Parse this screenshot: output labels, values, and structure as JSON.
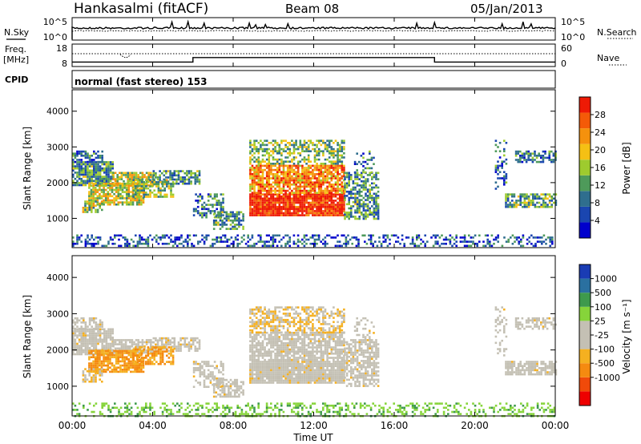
{
  "header": {
    "title": "Hankasalmi (fitACF)",
    "beam": "Beam 08",
    "date": "05/Jan/2013"
  },
  "panels": {
    "nsky": {
      "left_label": "N.Sky",
      "right_label": "N.Search",
      "left_ticks": [
        "10^5",
        "10^0"
      ],
      "right_ticks": [
        "10^5",
        "10^0"
      ]
    },
    "freq": {
      "left_label_1": "Freq.",
      "left_label_2": "[MHz]",
      "right_label": "Nave",
      "left_ticks": [
        "18",
        "8"
      ],
      "right_ticks": [
        "60",
        "0"
      ]
    },
    "cpid": {
      "label": "CPID",
      "mode_text": "normal (fast stereo) 153"
    }
  },
  "colors": {
    "power": [
      "#0000cc",
      "#1a46b0",
      "#2f6e8e",
      "#4e9a5a",
      "#9ecb2e",
      "#f5c014",
      "#f5910d",
      "#f45a08",
      "#ee1a05"
    ],
    "velocity": [
      "#ee0000",
      "#f04a0a",
      "#f58a10",
      "#f5b020",
      "#c4c0b4",
      "#c4c0b4",
      "#86d43a",
      "#3e9a4c",
      "#2a70a0",
      "#1a3cb4"
    ],
    "axis": "#000000"
  },
  "chart_data": [
    {
      "type": "line",
      "name": "nsky-nsearch",
      "x_range": [
        0,
        24
      ],
      "y_scale": "log",
      "note_series": [
        "N.Sky",
        "N.Search"
      ]
    },
    {
      "type": "line",
      "name": "frequency-nave",
      "x": [
        0,
        6,
        6,
        18,
        18,
        24
      ],
      "series": [
        {
          "name": "Freq.",
          "values": [
            10,
            10,
            12,
            12,
            10,
            10
          ]
        }
      ],
      "nave_level": 60,
      "ylim_left": [
        8,
        18
      ],
      "ylim_right": [
        0,
        60
      ]
    },
    {
      "type": "heatmap",
      "name": "power",
      "xlabel": "Time UT",
      "ylabel": "Slant Range [km]",
      "xlim": [
        0,
        24
      ],
      "ylim": [
        180,
        4600
      ],
      "yticks": [
        1000,
        2000,
        3000,
        4000
      ],
      "colorbar": {
        "label": "Power [dB]",
        "ticks": [
          4,
          8,
          12,
          16,
          20,
          24,
          28
        ],
        "range": [
          0,
          32
        ]
      }
    },
    {
      "type": "heatmap",
      "name": "velocity",
      "xlabel": "Time UT",
      "ylabel": "Slant Range [km]",
      "xlim": [
        0,
        24
      ],
      "ylim": [
        180,
        4600
      ],
      "yticks": [
        1000,
        2000,
        3000,
        4000
      ],
      "xticks": [
        "00:00",
        "04:00",
        "08:00",
        "12:00",
        "16:00",
        "20:00",
        "00:00"
      ],
      "colorbar": {
        "label": "Velocity [m s⁻¹]",
        "ticks": [
          "1000",
          "500",
          "100",
          "25",
          "-25",
          "-100",
          "-500",
          "-1000"
        ]
      }
    }
  ],
  "x_axis": {
    "label": "Time UT",
    "ticks": [
      "00:00",
      "04:00",
      "08:00",
      "12:00",
      "16:00",
      "20:00",
      "00:00"
    ]
  }
}
